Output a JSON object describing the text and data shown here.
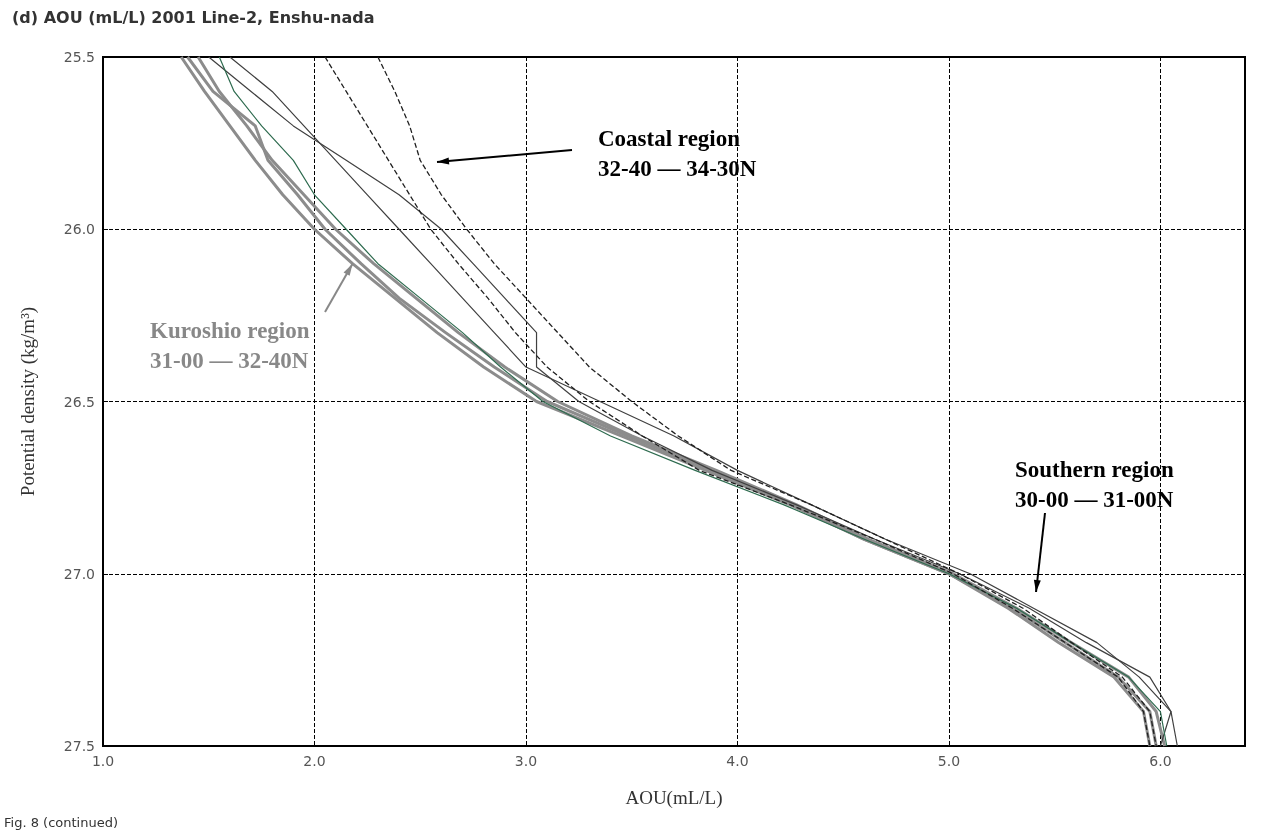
{
  "chart_data": {
    "type": "line",
    "title": "(d) AOU (mL/L) 2001 Line-2, Enshu-nada",
    "xlabel": "AOU(mL/L)",
    "ylabel": "Potential density (kg/m³)",
    "annotations": [
      "Coastal region\n32-40 — 34-30N",
      {
        "text": "Kuroshio region\n31-00 — 32-40N",
        "x": 2.18,
        "y": 26.1
      },
      "Southern region\n30-00 — 31-00N",
      "Fig. 8 (continued)"
    ],
    "xlim": [
      1.0,
      6.4
    ],
    "xticks": [
      {
        "value": 1,
        "label": "1.0"
      },
      {
        "value": 2,
        "label": "2.0"
      },
      {
        "value": 3,
        "label": "3.0"
      },
      {
        "value": 4,
        "label": "4.0"
      },
      {
        "value": 5,
        "label": "5.0"
      },
      {
        "value": 6,
        "label": "6.0"
      }
    ],
    "ylim": [
      27.5,
      25.5
    ],
    "yticks": [
      25.5,
      {
        "value": 26,
        "label": "26.0"
      },
      26.5,
      {
        "value": 27,
        "label": "27.0"
      },
      27.5
    ],
    "grid": true,
    "marker": "none",
    "series": [
      {
        "color": "#8c8c8c",
        "x": [
          1.37,
          1.48,
          1.6,
          1.72,
          1.85,
          2.0,
          2.18,
          2.38,
          2.58,
          2.8,
          3.05,
          3.45,
          3.85,
          4.25,
          4.6,
          5.0,
          5.3,
          5.55,
          5.8,
          5.95,
          5.98
        ],
        "values": [
          25.5,
          25.6,
          25.7,
          25.8,
          25.9,
          26.0,
          26.1,
          26.2,
          26.3,
          26.4,
          26.5,
          26.6,
          26.7,
          26.8,
          26.9,
          27.0,
          27.1,
          27.2,
          27.3,
          27.4,
          27.5
        ]
      },
      {
        "color": "#8c8c8c",
        "x": [
          1.45,
          1.55,
          1.68,
          1.8,
          1.95,
          2.1,
          2.28,
          2.48,
          2.68,
          2.9,
          3.15,
          3.5,
          3.9,
          4.28,
          4.62,
          5.02,
          5.32,
          5.58,
          5.85,
          5.98,
          6.02
        ],
        "values": [
          25.5,
          25.6,
          25.7,
          25.8,
          25.9,
          26.0,
          26.1,
          26.2,
          26.3,
          26.4,
          26.5,
          26.6,
          26.7,
          26.8,
          26.9,
          27.0,
          27.1,
          27.2,
          27.3,
          27.4,
          27.5
        ]
      },
      {
        "color": "#8c8c8c",
        "x": [
          1.4,
          1.52,
          1.72,
          1.78,
          1.92,
          2.05,
          2.22,
          2.4,
          2.62,
          2.85,
          3.1,
          3.48,
          3.88,
          4.26,
          4.6,
          5.0,
          5.28,
          5.52,
          5.78,
          5.92,
          5.95
        ],
        "values": [
          25.5,
          25.6,
          25.7,
          25.8,
          25.9,
          26.0,
          26.1,
          26.2,
          26.3,
          26.4,
          26.5,
          26.6,
          26.7,
          26.8,
          26.9,
          27.0,
          27.1,
          27.2,
          27.3,
          27.4,
          27.5
        ]
      },
      {
        "color": "#404040",
        "x": [
          1.5,
          1.7,
          1.9,
          2.15,
          2.4,
          2.6,
          2.75,
          2.9,
          3.05,
          3.05,
          3.25,
          3.55,
          3.88,
          4.28,
          4.65,
          5.05,
          5.38,
          5.65,
          5.95,
          6.05,
          6.0
        ],
        "values": [
          25.5,
          25.6,
          25.7,
          25.8,
          25.9,
          26.0,
          26.1,
          26.2,
          26.3,
          26.4,
          26.5,
          26.6,
          26.7,
          26.8,
          26.9,
          27.0,
          27.1,
          27.2,
          27.3,
          27.4,
          27.5
        ]
      },
      {
        "color": "#404040",
        "x": [
          1.6,
          1.8,
          1.95,
          2.1,
          2.25,
          2.4,
          2.55,
          2.7,
          2.85,
          3.0,
          3.35,
          3.7,
          4.0,
          4.35,
          4.7,
          5.1,
          5.4,
          5.7,
          5.9,
          6.05,
          6.08
        ],
        "values": [
          25.5,
          25.6,
          25.7,
          25.8,
          25.9,
          26.0,
          26.1,
          26.2,
          26.3,
          26.4,
          26.5,
          26.6,
          26.7,
          26.8,
          26.9,
          27.0,
          27.1,
          27.2,
          27.3,
          27.4,
          27.5
        ]
      },
      {
        "color": "#2e6b4f",
        "x": [
          1.55,
          1.62,
          1.75,
          1.9,
          2.0,
          2.15,
          2.3,
          2.5,
          2.7,
          2.88,
          3.08,
          3.4,
          3.8,
          4.22,
          4.6,
          5.0,
          5.32,
          5.58,
          5.85,
          6.0,
          6.03
        ],
        "values": [
          25.5,
          25.6,
          25.7,
          25.8,
          25.9,
          26.0,
          26.1,
          26.2,
          26.3,
          26.4,
          26.5,
          26.6,
          26.7,
          26.8,
          26.9,
          27.0,
          27.1,
          27.2,
          27.3,
          27.4,
          27.5
        ]
      },
      {
        "color": "#202020",
        "line_style": "dashed",
        "x": [
          2.05,
          2.15,
          2.25,
          2.35,
          2.45,
          2.55,
          2.68,
          2.82,
          2.95,
          3.1,
          3.3,
          3.55,
          3.82,
          4.25,
          4.65,
          5.02,
          5.3,
          5.55,
          5.8,
          5.92,
          5.95
        ],
        "values": [
          25.5,
          25.6,
          25.7,
          25.8,
          25.9,
          26.0,
          26.1,
          26.2,
          26.3,
          26.4,
          26.5,
          26.6,
          26.7,
          26.8,
          26.9,
          27.0,
          27.1,
          27.2,
          27.3,
          27.4,
          27.5
        ]
      },
      {
        "color": "#202020",
        "line_style": "dashed",
        "x": [
          2.3,
          2.38,
          2.45,
          2.5,
          2.6,
          2.72,
          2.85,
          3.0,
          3.15,
          3.3,
          3.5,
          3.72,
          3.97,
          4.35,
          4.7,
          5.05,
          5.35,
          5.58,
          5.82,
          5.95,
          5.98
        ],
        "values": [
          25.5,
          25.6,
          25.7,
          25.8,
          25.9,
          26.0,
          26.1,
          26.2,
          26.3,
          26.4,
          26.5,
          26.6,
          26.7,
          26.8,
          26.9,
          27.0,
          27.1,
          27.2,
          27.3,
          27.4,
          27.5
        ]
      }
    ]
  }
}
